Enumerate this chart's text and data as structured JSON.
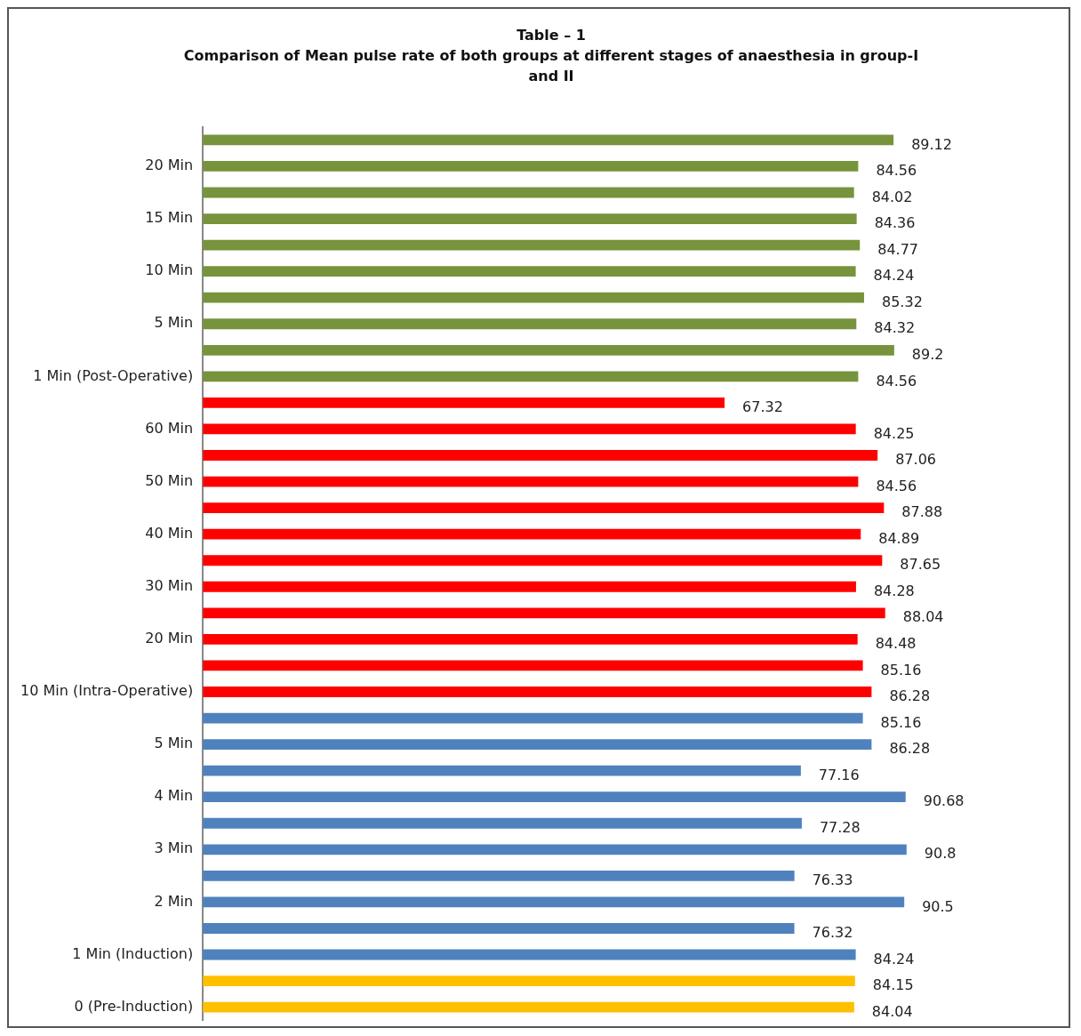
{
  "chart_data": {
    "type": "bar",
    "orientation": "horizontal",
    "title": "Table – 1",
    "subtitle": "Comparison of Mean pulse rate of both groups at different stages of anaesthesia in group-I and II",
    "categories": [
      null,
      "20 Min",
      null,
      "15 Min",
      null,
      "10 Min",
      null,
      "5 Min",
      null,
      "1 Min (Post-Operative)",
      null,
      "60 Min",
      null,
      "50 Min",
      null,
      "40 Min",
      null,
      "30 Min",
      null,
      "20 Min",
      null,
      "10 Min (Intra-Operative)",
      null,
      "5 Min",
      null,
      "4 Min",
      null,
      "3 Min",
      null,
      "2 Min",
      null,
      "1 Min (Induction)",
      null,
      "0 (Pre-Induction)"
    ],
    "values": [
      89.12,
      84.56,
      84.02,
      84.36,
      84.77,
      84.24,
      85.32,
      84.32,
      89.2,
      84.56,
      67.32,
      84.25,
      87.06,
      84.56,
      87.88,
      84.89,
      87.65,
      84.28,
      88.04,
      84.48,
      85.16,
      86.28,
      85.16,
      86.28,
      77.16,
      90.68,
      77.28,
      90.8,
      76.33,
      90.5,
      76.32,
      84.24,
      84.15,
      84.04
    ],
    "colors": [
      "#77933c",
      "#77933c",
      "#77933c",
      "#77933c",
      "#77933c",
      "#77933c",
      "#77933c",
      "#77933c",
      "#77933c",
      "#77933c",
      "#ff0000",
      "#ff0000",
      "#ff0000",
      "#ff0000",
      "#ff0000",
      "#ff0000",
      "#ff0000",
      "#ff0000",
      "#ff0000",
      "#ff0000",
      "#ff0000",
      "#ff0000",
      "#4f81bd",
      "#4f81bd",
      "#4f81bd",
      "#4f81bd",
      "#4f81bd",
      "#4f81bd",
      "#4f81bd",
      "#4f81bd",
      "#4f81bd",
      "#4f81bd",
      "#ffc000",
      "#ffc000"
    ],
    "data_labels": true,
    "tick_labels": "y",
    "legend": false
  }
}
